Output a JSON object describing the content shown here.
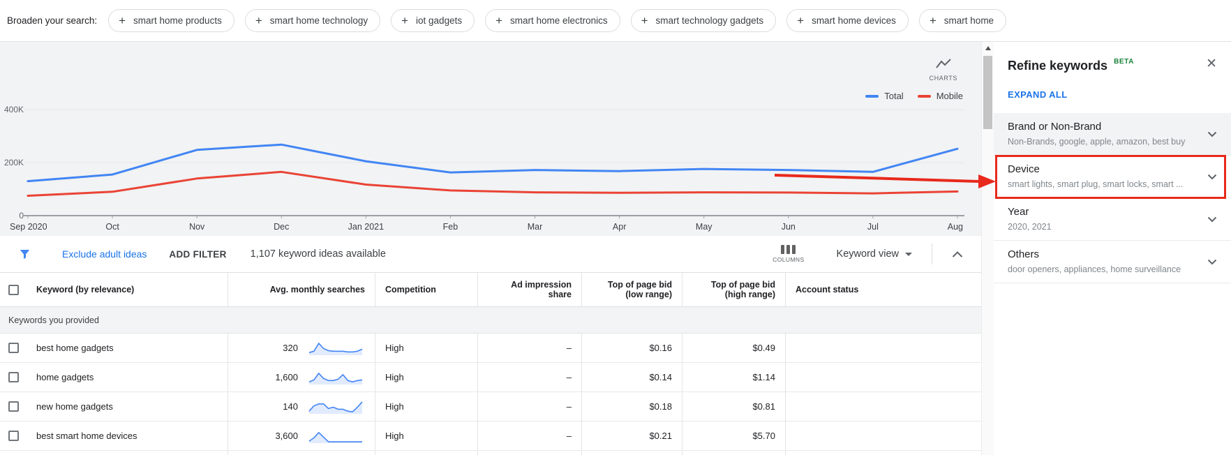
{
  "broaden": {
    "label": "Broaden your search:",
    "chips": [
      "smart home products",
      "smart home technology",
      "iot gadgets",
      "smart home electronics",
      "smart technology gadgets",
      "smart home devices",
      "smart home"
    ]
  },
  "chart_data": {
    "type": "line",
    "x": [
      "Sep 2020",
      "Oct",
      "Nov",
      "Dec",
      "Jan 2021",
      "Feb",
      "Mar",
      "Apr",
      "May",
      "Jun",
      "Jul",
      "Aug"
    ],
    "yticks": [
      {
        "value": 0,
        "label": "0"
      },
      {
        "value": 200000,
        "label": "200K"
      },
      {
        "value": 400000,
        "label": "400K"
      }
    ],
    "ylim": [
      0,
      480000
    ],
    "grid": true,
    "legend_position": "top-right",
    "series": [
      {
        "name": "Total",
        "color": "#4285f4",
        "values": [
          130000,
          155000,
          248000,
          268000,
          205000,
          163000,
          172000,
          168000,
          176000,
          172000,
          165000,
          252000
        ]
      },
      {
        "name": "Mobile",
        "color": "#ea4335",
        "values": [
          75000,
          90000,
          140000,
          165000,
          117000,
          95000,
          88000,
          86000,
          88000,
          87000,
          84000,
          91000
        ]
      }
    ]
  },
  "chart": {
    "charts_label": "CHARTS"
  },
  "toolbar": {
    "exclude_link": "Exclude adult ideas",
    "add_filter": "ADD FILTER",
    "ideas_count": "1,107 keyword ideas available",
    "columns_label": "COLUMNS",
    "view_label": "Keyword view"
  },
  "table": {
    "columns": [
      "Keyword (by relevance)",
      "Avg. monthly searches",
      "Competition",
      "Ad impression share",
      "Top of page bid (low range)",
      "Top of page bid (high range)",
      "Account status"
    ],
    "section_label": "Keywords you provided",
    "rows": [
      {
        "keyword": "best home gadgets",
        "avg_monthly_searches": "320",
        "competition": "High",
        "ad_impression_share": "–",
        "bid_low": "$0.16",
        "bid_high": "$0.49",
        "account_status": "",
        "sparkline": [
          2,
          3,
          9,
          5,
          3.5,
          3,
          3,
          3,
          2.5,
          2.5,
          3,
          4.5
        ]
      },
      {
        "keyword": "home gadgets",
        "avg_monthly_searches": "1,600",
        "competition": "High",
        "ad_impression_share": "–",
        "bid_low": "$0.14",
        "bid_high": "$1.14",
        "account_status": "",
        "sparkline": [
          2,
          3.5,
          8.5,
          4.5,
          3,
          3,
          4,
          7.5,
          3,
          2,
          3,
          3.5
        ]
      },
      {
        "keyword": "new home gadgets",
        "avg_monthly_searches": "140",
        "competition": "High",
        "ad_impression_share": "–",
        "bid_low": "$0.18",
        "bid_high": "$0.81",
        "account_status": "",
        "sparkline": [
          2,
          6,
          7.5,
          7.5,
          4,
          5,
          3.5,
          3.5,
          2,
          1.5,
          5,
          9
        ]
      },
      {
        "keyword": "best smart home devices",
        "avg_monthly_searches": "3,600",
        "competition": "High",
        "ad_impression_share": "–",
        "bid_low": "$0.21",
        "bid_high": "$5.70",
        "account_status": "",
        "sparkline": [
          1.5,
          4,
          8,
          4.5,
          1,
          1,
          1,
          1,
          1,
          1,
          1,
          1
        ]
      }
    ]
  },
  "refine": {
    "title": "Refine keywords",
    "badge": "BETA",
    "expand_all": "EXPAND ALL",
    "close_glyph": "✕",
    "sections": [
      {
        "title": "Brand or Non-Brand",
        "subtitle": "Non-Brands, google, apple, amazon, best buy"
      },
      {
        "title": "Device",
        "subtitle": "smart lights, smart plug, smart locks, smart ..."
      },
      {
        "title": "Year",
        "subtitle": "2020, 2021"
      },
      {
        "title": "Others",
        "subtitle": "door openers, appliances, home surveillance"
      }
    ]
  },
  "colors": {
    "accent_blue": "#1a73e8",
    "chart_blue": "#4285f4",
    "chart_red": "#ea4335",
    "beta_green": "#188038",
    "annotation_red": "#e8291c"
  }
}
